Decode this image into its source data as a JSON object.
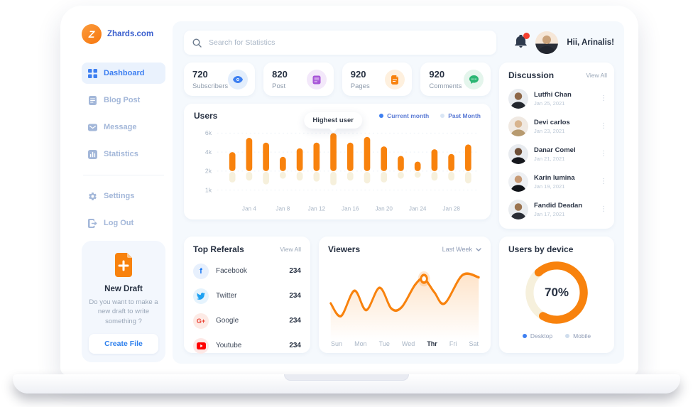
{
  "brand": {
    "logo_letter": "Z",
    "name": "Zhards.com"
  },
  "sidebar": {
    "items": [
      {
        "label": "Dashboard",
        "active": true
      },
      {
        "label": "Blog Post"
      },
      {
        "label": "Message"
      },
      {
        "label": "Statistics"
      },
      {
        "label": "Settings"
      },
      {
        "label": "Log Out"
      }
    ],
    "new_draft": {
      "title": "New Draft",
      "description": "Do you want to make a new draft to write something ?",
      "button": "Create File"
    }
  },
  "topbar": {
    "search_placeholder": "Search for Statistics",
    "greeting": "Hii, Arinalis!"
  },
  "stats": [
    {
      "value": "720",
      "label": "Subscribers",
      "icon": "eye-icon",
      "color": "#3d7ff1",
      "bg": "#e3eefc"
    },
    {
      "value": "820",
      "label": "Post",
      "icon": "post-icon",
      "color": "#a855d8",
      "bg": "#f3e8fa"
    },
    {
      "value": "920",
      "label": "Pages",
      "icon": "pages-icon",
      "color": "#f8820d",
      "bg": "#fef0de"
    },
    {
      "value": "920",
      "label": "Comments",
      "icon": "comments-icon",
      "color": "#2bb673",
      "bg": "#e4f5ec"
    }
  ],
  "discussion": {
    "title": "Discussion",
    "view_all": "View All",
    "members": [
      {
        "name": "Lutfhi Chan",
        "date": "Jan 25, 2021"
      },
      {
        "name": "Devi carlos",
        "date": "Jan 23, 2021"
      },
      {
        "name": "Danar Comel",
        "date": "Jan 21, 2021"
      },
      {
        "name": "Karin lumina",
        "date": "Jan 19, 2021"
      },
      {
        "name": "Fandid Deadan",
        "date": "Jan 17, 2021"
      }
    ]
  },
  "referrals": {
    "title": "Top Referals",
    "view_all": "View All",
    "items": [
      {
        "name": "Facebook",
        "value": "234"
      },
      {
        "name": "Twitter",
        "value": "234"
      },
      {
        "name": "Google",
        "value": "234"
      },
      {
        "name": "Youtube",
        "value": "234"
      }
    ]
  },
  "device": {
    "title": "Users by device",
    "percent": "70%"
  },
  "colors": {
    "accent_blue": "#3d7ff1",
    "orange": "#f8820d",
    "cream": "#f6f0dc",
    "badge_red": "#f43f2e"
  },
  "chart_data": [
    {
      "id": "users",
      "type": "bar",
      "title": "Users",
      "legend": [
        "Current month",
        "Past Month"
      ],
      "x_labels": [
        "Jan 4",
        "Jan 8",
        "Jan 12",
        "Jan 16",
        "Jan 20",
        "Jan 24",
        "Jan 28"
      ],
      "y_ticks": [
        "6k",
        "4k",
        "2k",
        "1k"
      ],
      "baseline_k": 2,
      "series": [
        {
          "name": "Current month",
          "color": "#f8820d",
          "values_k": [
            4.0,
            5.5,
            5.0,
            3.5,
            4.4,
            5.0,
            6.0,
            5.0,
            5.6,
            4.6,
            3.6,
            3.0,
            4.3,
            3.8,
            4.8
          ]
        },
        {
          "name": "Past Month",
          "color": "#f6f0dc",
          "values_k": [
            1.4,
            1.5,
            1.3,
            1.6,
            1.5,
            1.45,
            1.25,
            1.5,
            1.35,
            1.4,
            1.6,
            1.65,
            1.5,
            1.5,
            1.35
          ]
        }
      ],
      "annotation": {
        "text": "Highest user",
        "bar_index": 6
      }
    },
    {
      "id": "viewers",
      "type": "line",
      "title": "Viewers",
      "filter": "Last Week",
      "x_labels": [
        "Sun",
        "Mon",
        "Tue",
        "Wed",
        "Thr",
        "Fri",
        "Sat"
      ],
      "highlight_day": "Thr",
      "points": [
        [
          0,
          45
        ],
        [
          7,
          28
        ],
        [
          16,
          62
        ],
        [
          24,
          36
        ],
        [
          33,
          66
        ],
        [
          41,
          38
        ],
        [
          48,
          40
        ],
        [
          57,
          70
        ],
        [
          63,
          78
        ],
        [
          70,
          60
        ],
        [
          77,
          45
        ],
        [
          89,
          83
        ],
        [
          100,
          80
        ]
      ],
      "marker": [
        63,
        78
      ],
      "line_color": "#f8820d"
    },
    {
      "id": "device",
      "type": "donut",
      "title": "Users by device",
      "value_pct": 70,
      "label": "70%",
      "segments": [
        {
          "label": "Desktop",
          "value": 70,
          "color": "#f8820d",
          "legend_dot": "#3d7ff1"
        },
        {
          "label": "Mobile",
          "value": 30,
          "color": "#f6f0dc",
          "legend_dot": "#cfdded"
        }
      ]
    }
  ]
}
